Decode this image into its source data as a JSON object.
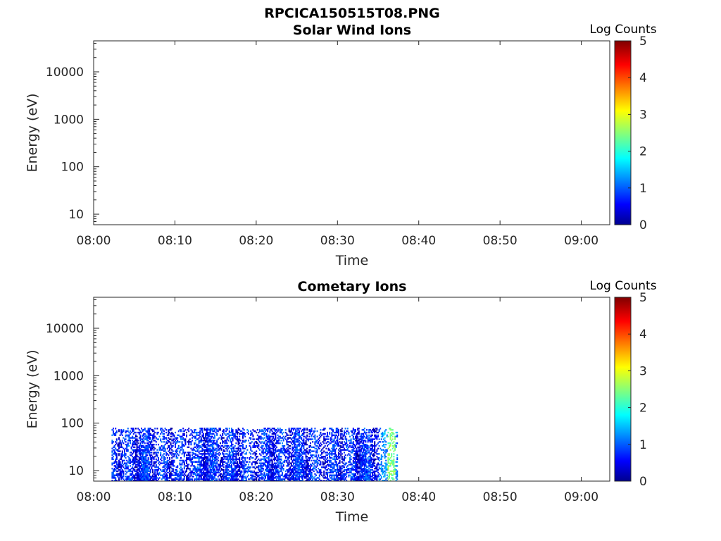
{
  "figure": {
    "title": "RPCICA150515T08.PNG"
  },
  "colorscale": {
    "name": "jet",
    "stops": [
      "#00008f",
      "#0000ff",
      "#00ffff",
      "#ffff00",
      "#ff0000",
      "#800000"
    ]
  },
  "chart_data": [
    {
      "type": "heatmap",
      "title": "Solar Wind Ions",
      "xlabel": "Time",
      "ylabel": "Energy (eV)",
      "x_ticks": [
        "08:00",
        "08:10",
        "08:20",
        "08:30",
        "08:40",
        "08:50",
        "09:00"
      ],
      "x_range_minutes": [
        0,
        63.5
      ],
      "y_scale": "log",
      "y_ticks": [
        "10",
        "100",
        "1000",
        "10000"
      ],
      "y_range": [
        6,
        45000
      ],
      "colorbar": {
        "label": "Log Counts",
        "ticks": [
          "0",
          "1",
          "2",
          "3",
          "4",
          "5"
        ],
        "range": [
          0,
          5
        ]
      },
      "data": []
    },
    {
      "type": "heatmap",
      "title": "Cometary Ions",
      "xlabel": "Time",
      "ylabel": "Energy (eV)",
      "x_ticks": [
        "08:00",
        "08:10",
        "08:20",
        "08:30",
        "08:40",
        "08:50",
        "09:00"
      ],
      "x_range_minutes": [
        0,
        63.5
      ],
      "y_scale": "log",
      "y_ticks": [
        "10",
        "100",
        "1000",
        "10000"
      ],
      "y_range": [
        6,
        45000
      ],
      "colorbar": {
        "label": "Log Counts",
        "ticks": [
          "0",
          "1",
          "2",
          "3",
          "4",
          "5"
        ],
        "range": [
          0,
          5
        ]
      },
      "data_extent": {
        "time_start_minutes": 2.2,
        "time_end_minutes": 37.4,
        "energy_min_eV": 6,
        "energy_max_eV": 80
      },
      "typical_log_counts": [
        0,
        1.5
      ],
      "max_log_counts": 2.8,
      "max_log_counts_time_minutes": 36.6
    }
  ]
}
